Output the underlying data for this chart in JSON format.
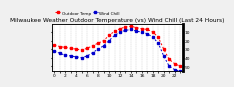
{
  "title": "Milwaukee Weather Outdoor Temperature (vs) Wind Chill (Last 24 Hours)",
  "temp_color": "#ff0000",
  "windchill_color": "#0000cc",
  "bg_color": "#f0f0f0",
  "plot_bg": "#ffffff",
  "grid_color": "#aaaaaa",
  "border_color": "#000000",
  "ylim": [
    5,
    60
  ],
  "yticks": [
    10,
    20,
    30,
    40,
    50
  ],
  "hours": [
    0,
    1,
    2,
    3,
    4,
    5,
    6,
    7,
    8,
    9,
    10,
    11,
    12,
    13,
    14,
    15,
    16,
    17,
    18,
    19,
    20,
    21,
    22,
    23
  ],
  "temperature": [
    35,
    33,
    32,
    31,
    30,
    29,
    31,
    34,
    37,
    40,
    46,
    51,
    54,
    56,
    57,
    55,
    54,
    53,
    50,
    44,
    30,
    18,
    13,
    10
  ],
  "windchill": [
    28,
    25,
    23,
    22,
    21,
    20,
    22,
    26,
    30,
    34,
    40,
    46,
    50,
    52,
    53,
    51,
    50,
    48,
    44,
    37,
    22,
    10,
    6,
    4
  ],
  "xtick_labels": [
    "0",
    "",
    "2",
    "",
    "4",
    "",
    "6",
    "",
    "8",
    "",
    "10",
    "",
    "12",
    "",
    "14",
    "",
    "16",
    "",
    "18",
    "",
    "20",
    "",
    "22",
    ""
  ],
  "title_fontsize": 4.2,
  "tick_fontsize": 3.2,
  "ylabel_right": [
    "50",
    "40",
    "30",
    "20",
    "10"
  ],
  "legend_labels": [
    "Outdoor Temp",
    "Wind Chill"
  ],
  "legend_fontsize": 3.0,
  "marker_size": 2.0,
  "line_width": 0.7
}
